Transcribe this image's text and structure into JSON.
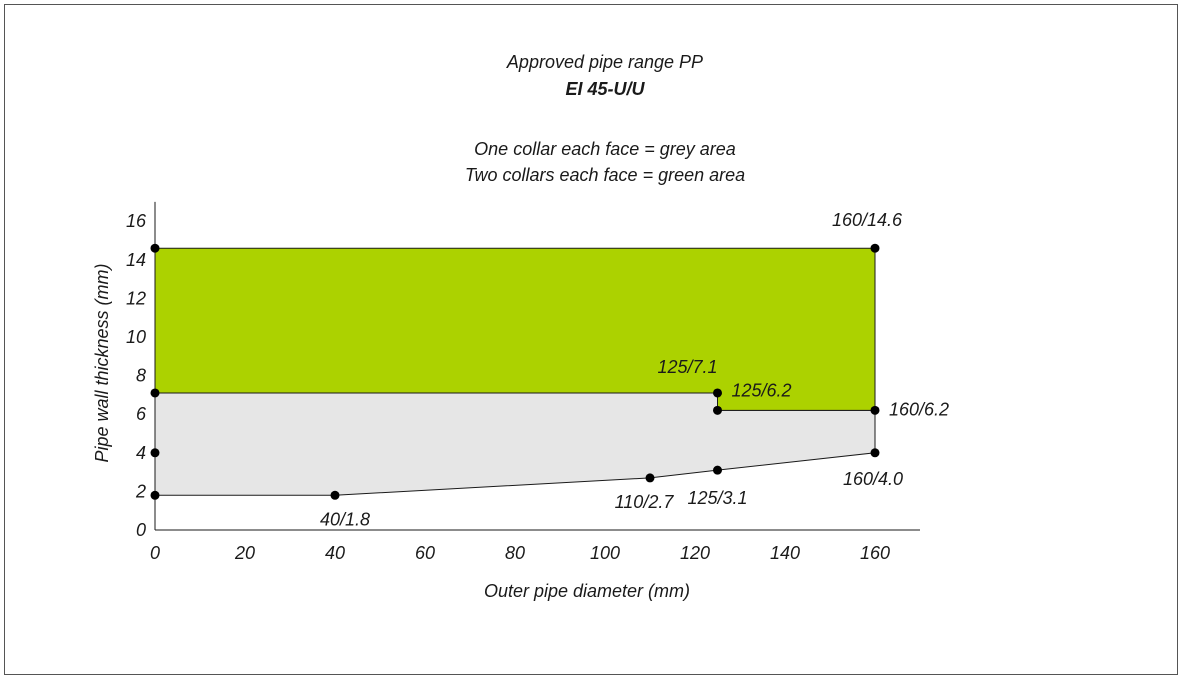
{
  "chart_data": {
    "type": "area",
    "title": "Approved pipe range PP",
    "subtitle": "EI 45-U/U",
    "notes": [
      "One collar each face = grey area",
      "Two collars each face = green area"
    ],
    "xlabel": "Outer pipe diameter (mm)",
    "ylabel": "Pipe wall thickness (mm)",
    "xlim": [
      0,
      170
    ],
    "ylim": [
      0,
      17
    ],
    "xticks": [
      "0",
      "20",
      "40",
      "60",
      "80",
      "100",
      "120",
      "140",
      "160"
    ],
    "yticks": [
      "0",
      "2",
      "4",
      "6",
      "8",
      "10",
      "12",
      "14",
      "16"
    ],
    "grid": false,
    "colors": {
      "grey_area": "#e6e6e6",
      "green_area": "#acd200",
      "outline": "#1a1a1a"
    },
    "regions": [
      {
        "key": "grey",
        "color": "#e6e6e6",
        "polygon": [
          [
            0,
            1.8
          ],
          [
            40,
            1.8
          ],
          [
            110,
            2.7
          ],
          [
            125,
            3.1
          ],
          [
            160,
            4.0
          ],
          [
            160,
            6.2
          ],
          [
            125,
            6.2
          ],
          [
            125,
            7.1
          ],
          [
            0,
            7.1
          ]
        ]
      },
      {
        "key": "green",
        "color": "#acd200",
        "polygon": [
          [
            0,
            7.1
          ],
          [
            125,
            7.1
          ],
          [
            125,
            6.2
          ],
          [
            160,
            6.2
          ],
          [
            160,
            14.6
          ],
          [
            0,
            14.6
          ]
        ]
      }
    ],
    "points": [
      {
        "x": 0,
        "y": 14.6,
        "label": ""
      },
      {
        "x": 0,
        "y": 7.1,
        "label": ""
      },
      {
        "x": 0,
        "y": 4.0,
        "label": ""
      },
      {
        "x": 0,
        "y": 1.8,
        "label": ""
      },
      {
        "x": 40,
        "y": 1.8,
        "label": "40/1.8"
      },
      {
        "x": 110,
        "y": 2.7,
        "label": "110/2.7"
      },
      {
        "x": 125,
        "y": 3.1,
        "label": "125/3.1"
      },
      {
        "x": 125,
        "y": 7.1,
        "label": "125/7.1"
      },
      {
        "x": 125,
        "y": 6.2,
        "label": "125/6.2"
      },
      {
        "x": 160,
        "y": 14.6,
        "label": "160/14.6"
      },
      {
        "x": 160,
        "y": 6.2,
        "label": "160/6.2"
      },
      {
        "x": 160,
        "y": 4.0,
        "label": "160/4.0"
      }
    ]
  }
}
